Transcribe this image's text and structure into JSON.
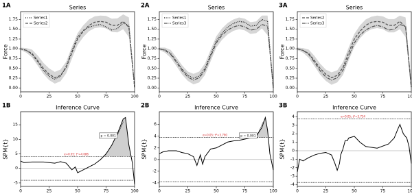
{
  "chart_data": [
    {
      "type": "line",
      "panel_label": "1A",
      "title": "Series",
      "ylabel": "Force",
      "x": [
        0,
        5,
        10,
        15,
        20,
        25,
        30,
        35,
        40,
        45,
        50,
        55,
        60,
        65,
        70,
        75,
        80,
        85,
        90,
        95,
        100
      ],
      "series": [
        {
          "name": "Series1",
          "color": "#111111",
          "dash": "dotted",
          "values": [
            1.0,
            0.96,
            0.86,
            0.66,
            0.45,
            0.3,
            0.22,
            0.3,
            0.55,
            0.95,
            1.3,
            1.47,
            1.55,
            1.6,
            1.62,
            1.56,
            1.48,
            1.52,
            1.66,
            1.6,
            0.0
          ]
        },
        {
          "name": "Series2",
          "color": "#555555",
          "dash": "dashed",
          "values": [
            1.0,
            0.96,
            0.88,
            0.7,
            0.5,
            0.35,
            0.26,
            0.32,
            0.52,
            0.9,
            1.25,
            1.45,
            1.6,
            1.68,
            1.7,
            1.68,
            1.6,
            1.6,
            1.7,
            1.55,
            0.02
          ]
        }
      ],
      "band": {
        "color": "#d6d6d6",
        "lower": [
          0.97,
          0.9,
          0.78,
          0.57,
          0.36,
          0.2,
          0.11,
          0.17,
          0.37,
          0.75,
          1.1,
          1.3,
          1.45,
          1.53,
          1.55,
          1.52,
          1.43,
          1.42,
          1.5,
          1.3,
          0.0
        ],
        "upper": [
          1.03,
          1.02,
          0.98,
          0.83,
          0.64,
          0.5,
          0.41,
          0.47,
          0.67,
          1.05,
          1.4,
          1.6,
          1.75,
          1.83,
          1.85,
          1.84,
          1.77,
          1.78,
          1.88,
          1.8,
          0.04
        ]
      },
      "legend": "upper left",
      "xlim": [
        0,
        100
      ],
      "xticks": [
        0,
        25,
        50,
        75,
        100
      ],
      "ylim": [
        -0.1,
        1.95
      ],
      "yticks": [
        {
          "value": 0,
          "label": "0.00"
        },
        {
          "value": 0.25,
          "label": "0.25"
        },
        {
          "value": 0.5,
          "label": "0.50"
        },
        {
          "value": 0.75,
          "label": "0.75"
        },
        {
          "value": 1,
          "label": "1.00"
        },
        {
          "value": 1.25,
          "label": "1.25"
        },
        {
          "value": 1.5,
          "label": "1.50"
        },
        {
          "value": 1.75,
          "label": "1.75"
        }
      ]
    },
    {
      "type": "line",
      "panel_label": "2A",
      "title": "Series",
      "ylabel": "Force",
      "x": [
        0,
        5,
        10,
        15,
        20,
        25,
        30,
        35,
        40,
        45,
        50,
        55,
        60,
        65,
        70,
        75,
        80,
        85,
        90,
        95,
        100
      ],
      "series": [
        {
          "name": "Series1",
          "color": "#111111",
          "dash": "dotted",
          "values": [
            1.0,
            0.97,
            0.88,
            0.68,
            0.48,
            0.32,
            0.25,
            0.3,
            0.5,
            0.85,
            1.2,
            1.4,
            1.55,
            1.65,
            1.7,
            1.68,
            1.58,
            1.6,
            1.75,
            1.7,
            0.0
          ]
        },
        {
          "name": "Series3",
          "color": "#555555",
          "dash": "dashdot",
          "values": [
            1.0,
            0.96,
            0.86,
            0.66,
            0.44,
            0.28,
            0.2,
            0.26,
            0.45,
            0.8,
            1.15,
            1.35,
            1.48,
            1.56,
            1.6,
            1.56,
            1.48,
            1.5,
            1.62,
            1.58,
            0.0
          ]
        }
      ],
      "band": {
        "color": "#d6d6d6",
        "lower": [
          0.97,
          0.9,
          0.77,
          0.56,
          0.34,
          0.18,
          0.09,
          0.14,
          0.33,
          0.68,
          1.03,
          1.23,
          1.37,
          1.46,
          1.5,
          1.47,
          1.38,
          1.4,
          1.52,
          1.35,
          0.0
        ],
        "upper": [
          1.03,
          1.03,
          0.97,
          0.78,
          0.58,
          0.42,
          0.36,
          0.42,
          0.62,
          0.97,
          1.32,
          1.52,
          1.66,
          1.75,
          1.8,
          1.77,
          1.68,
          1.7,
          1.85,
          1.85,
          0.04
        ]
      },
      "legend": "upper left",
      "xlim": [
        0,
        100
      ],
      "xticks": [
        0,
        25,
        50,
        75,
        100
      ],
      "ylim": [
        -0.1,
        1.95
      ],
      "yticks": [
        {
          "value": 0,
          "label": "0.00"
        },
        {
          "value": 0.25,
          "label": "0.25"
        },
        {
          "value": 0.5,
          "label": "0.50"
        },
        {
          "value": 0.75,
          "label": "0.75"
        },
        {
          "value": 1,
          "label": "1.00"
        },
        {
          "value": 1.25,
          "label": "1.25"
        },
        {
          "value": 1.5,
          "label": "1.50"
        },
        {
          "value": 1.75,
          "label": "1.75"
        }
      ]
    },
    {
      "type": "line",
      "panel_label": "3A",
      "title": "Series",
      "ylabel": "Force",
      "x": [
        0,
        5,
        10,
        15,
        20,
        25,
        30,
        35,
        40,
        45,
        50,
        55,
        60,
        65,
        70,
        75,
        80,
        85,
        90,
        95,
        100
      ],
      "series": [
        {
          "name": "Series2",
          "color": "#555555",
          "dash": "dashed",
          "values": [
            1.0,
            0.96,
            0.88,
            0.7,
            0.5,
            0.35,
            0.26,
            0.32,
            0.52,
            0.9,
            1.25,
            1.45,
            1.6,
            1.68,
            1.7,
            1.68,
            1.6,
            1.6,
            1.7,
            1.55,
            0.02
          ]
        },
        {
          "name": "Series3",
          "color": "#555555",
          "dash": "dashdot",
          "values": [
            1.0,
            0.96,
            0.86,
            0.66,
            0.44,
            0.28,
            0.2,
            0.26,
            0.45,
            0.8,
            1.15,
            1.35,
            1.48,
            1.56,
            1.6,
            1.56,
            1.48,
            1.5,
            1.62,
            1.58,
            0.0
          ]
        }
      ],
      "band": {
        "color": "#d6d6d6",
        "lower": [
          0.97,
          0.9,
          0.77,
          0.56,
          0.34,
          0.18,
          0.08,
          0.14,
          0.33,
          0.7,
          1.05,
          1.27,
          1.42,
          1.5,
          1.53,
          1.5,
          1.42,
          1.42,
          1.5,
          1.3,
          0.0
        ],
        "upper": [
          1.03,
          1.02,
          0.98,
          0.82,
          0.62,
          0.47,
          0.4,
          0.45,
          0.66,
          1.03,
          1.38,
          1.6,
          1.75,
          1.82,
          1.85,
          1.83,
          1.76,
          1.76,
          1.85,
          1.8,
          0.04
        ]
      },
      "legend": "upper left",
      "xlim": [
        0,
        100
      ],
      "xticks": [
        0,
        25,
        50,
        75,
        100
      ],
      "ylim": [
        -0.1,
        1.95
      ],
      "yticks": [
        {
          "value": 0,
          "label": "0.00"
        },
        {
          "value": 0.25,
          "label": "0.25"
        },
        {
          "value": 0.5,
          "label": "0.50"
        },
        {
          "value": 0.75,
          "label": "0.75"
        },
        {
          "value": 1,
          "label": "1.00"
        },
        {
          "value": 1.25,
          "label": "1.25"
        },
        {
          "value": 1.5,
          "label": "1.50"
        },
        {
          "value": 1.75,
          "label": "1.75"
        }
      ]
    },
    {
      "type": "line",
      "panel_label": "1B",
      "title": "Inference Curve",
      "ylabel": "SPM{t}",
      "x": [
        0,
        3,
        10,
        20,
        30,
        35,
        40,
        45,
        48,
        50,
        55,
        60,
        65,
        70,
        75,
        80,
        85,
        90,
        92,
        95,
        98,
        100
      ],
      "values": [
        2.5,
        2.0,
        2.2,
        2.2,
        1.8,
        2.3,
        1.8,
        -0.5,
        0.5,
        -1.5,
        -0.5,
        0.5,
        1.5,
        3.0,
        5.0,
        8.0,
        12.0,
        17.0,
        17.5,
        8.0,
        2.0,
        -5.5
      ],
      "color": "#000000",
      "fill_color": "#cfcfcf",
      "threshold": 4.086,
      "threshold_label": "α=0.05; t*=4.086",
      "p_label": "p = 0.001",
      "zero_line": true,
      "xlim": [
        0,
        100
      ],
      "xticks": [
        0,
        25,
        50,
        75,
        100
      ],
      "ylim": [
        -6.2,
        19.5
      ],
      "yticks": [
        -5,
        0,
        5,
        10,
        15
      ]
    },
    {
      "type": "line",
      "panel_label": "2B",
      "title": "Inference Curve",
      "ylabel": "SPM{t}",
      "x": [
        0,
        3,
        8,
        15,
        20,
        25,
        30,
        33,
        36,
        38,
        40,
        45,
        50,
        55,
        60,
        65,
        70,
        75,
        80,
        85,
        90,
        93,
        95,
        97,
        100
      ],
      "values": [
        1.0,
        1.3,
        1.5,
        1.5,
        1.2,
        1.0,
        0.5,
        -1.0,
        0.8,
        -0.8,
        0.5,
        1.8,
        2.0,
        2.5,
        3.0,
        3.2,
        3.3,
        3.5,
        3.7,
        4.0,
        5.5,
        7.2,
        5.0,
        1.0,
        -1.8
      ],
      "color": "#000000",
      "fill_color": "#cfcfcf",
      "threshold": 3.79,
      "threshold_label": "α=0.05; t*=3.790",
      "p_label": "p = 0.001",
      "zero_line": true,
      "xlim": [
        0,
        100
      ],
      "xticks": [
        0,
        25,
        50,
        75,
        100
      ],
      "ylim": [
        -4.6,
        8.2
      ],
      "yticks": [
        -4,
        -2,
        0,
        2,
        4,
        6
      ]
    },
    {
      "type": "line",
      "panel_label": "3B",
      "title": "Inference Curve",
      "ylabel": "SPM{t}",
      "x": [
        0,
        2,
        5,
        10,
        15,
        20,
        25,
        30,
        33,
        35,
        37,
        38,
        40,
        42,
        44,
        45,
        50,
        55,
        60,
        70,
        80,
        85,
        88,
        90,
        93,
        96,
        98,
        100
      ],
      "values": [
        -2.5,
        -1.0,
        -1.2,
        -0.8,
        -0.5,
        -0.3,
        -0.2,
        -0.5,
        -1.5,
        -2.3,
        -1.5,
        -0.5,
        0.2,
        1.2,
        1.2,
        1.5,
        1.7,
        1.0,
        0.5,
        0.3,
        0.8,
        1.5,
        2.5,
        3.1,
        2.0,
        1.5,
        0.5,
        -1.5
      ],
      "color": "#000000",
      "fill_color": "#cfcfcf",
      "threshold": 3.734,
      "threshold_label": "α=0.05; t*=3.734",
      "zero_line": true,
      "xlim": [
        0,
        100
      ],
      "xticks": [
        0,
        25,
        50,
        75,
        100
      ],
      "ylim": [
        -4.2,
        4.6
      ],
      "yticks": [
        -4,
        -3,
        -2,
        -1,
        0,
        1,
        2,
        3,
        4
      ]
    }
  ]
}
